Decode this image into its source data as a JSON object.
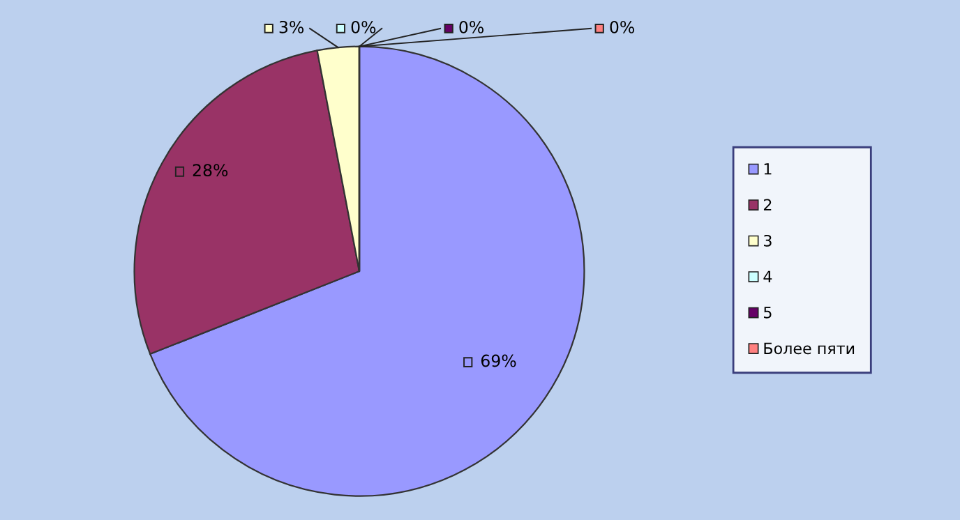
{
  "chart_data": {
    "type": "pie",
    "categories": [
      "1",
      "2",
      "3",
      "4",
      "5",
      "Более пяти"
    ],
    "values": [
      69,
      28,
      3,
      0,
      0,
      0
    ],
    "colors": [
      "#9999ff",
      "#993366",
      "#ffffcc",
      "#ccffff",
      "#660066",
      "#ff8080"
    ],
    "value_labels": [
      "69%",
      "28%",
      "3%",
      "0%",
      "0%",
      "0%"
    ],
    "legend": "right"
  }
}
